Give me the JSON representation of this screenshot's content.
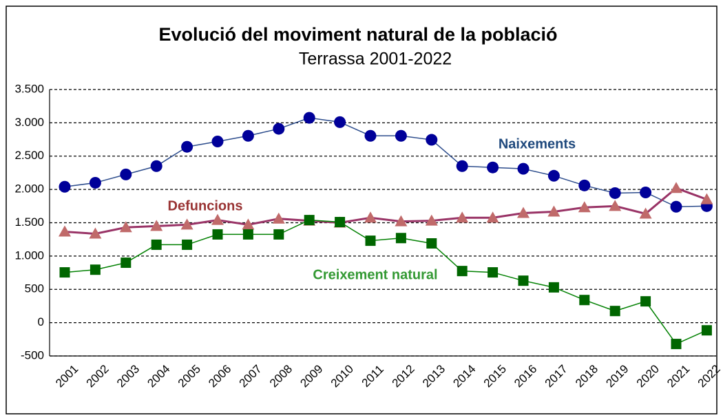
{
  "chart_data": {
    "type": "line",
    "title": "Evolució del moviment natural de la població",
    "subtitle": "Terrassa 2001-2022",
    "categories": [
      "2001",
      "2002",
      "2003",
      "2004",
      "2005",
      "2006",
      "2007",
      "2008",
      "2009",
      "2010",
      "2011",
      "2012",
      "2013",
      "2014",
      "2015",
      "2016",
      "2017",
      "2018",
      "2019",
      "2020",
      "2021",
      "2022"
    ],
    "series": [
      {
        "name": "Naixements",
        "color": "#2c4c8c",
        "marker_color": "#000099",
        "label_color": "#1f497d",
        "marker": "circle",
        "values": [
          2040,
          2100,
          2225,
          2350,
          2640,
          2720,
          2805,
          2910,
          3075,
          3010,
          2805,
          2805,
          2745,
          2350,
          2330,
          2310,
          2205,
          2060,
          1945,
          1955,
          1740,
          1750
        ]
      },
      {
        "name": "Defuncions",
        "color": "#993366",
        "marker_color": "#c06a6a",
        "label_color": "#993333",
        "marker": "triangle",
        "values": [
          1365,
          1335,
          1430,
          1450,
          1470,
          1540,
          1470,
          1560,
          1530,
          1500,
          1575,
          1520,
          1530,
          1575,
          1575,
          1645,
          1665,
          1730,
          1750,
          1635,
          2020,
          1850
        ]
      },
      {
        "name": "Creixement natural",
        "color": "#008000",
        "marker_color": "#006600",
        "label_color": "#339933",
        "marker": "square",
        "values": [
          755,
          795,
          900,
          1170,
          1170,
          1325,
          1325,
          1325,
          1540,
          1510,
          1230,
          1270,
          1190,
          775,
          755,
          630,
          530,
          340,
          175,
          320,
          -320,
          -115
        ]
      }
    ],
    "ylim": [
      -500,
      3500
    ],
    "yticks": [
      {
        "value": -500,
        "label": "-500"
      },
      0,
      500,
      {
        "value": 1000,
        "label": "1.000"
      },
      {
        "value": 1500,
        "label": "1.500"
      },
      {
        "value": 2000,
        "label": "2.000"
      },
      {
        "value": 2500,
        "label": "2.500"
      },
      {
        "value": 3000,
        "label": "3.000"
      },
      {
        "value": 3500,
        "label": "3.500"
      }
    ],
    "grid": true
  }
}
